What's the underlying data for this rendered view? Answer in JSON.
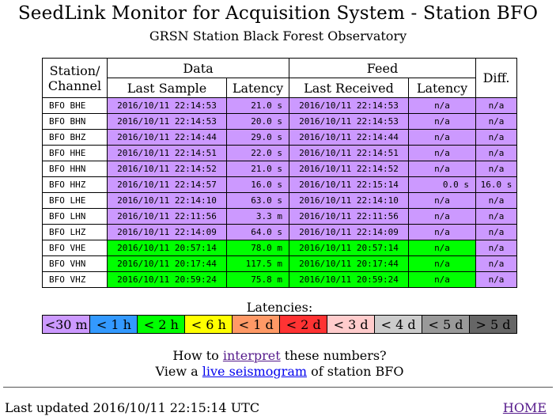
{
  "title": "SeedLink Monitor for Acquisition System - Station BFO",
  "subtitle": "GRSN Station Black Forest Observatory",
  "headers": {
    "station": "Station/",
    "channel": "Channel",
    "data": "Data",
    "feed": "Feed",
    "diff": "Diff.",
    "last_sample": "Last Sample",
    "latency": "Latency",
    "last_received": "Last Received",
    "feed_latency": "Latency"
  },
  "colors": {
    "purple": "#cc99ff",
    "green": "#00ff00"
  },
  "rows": [
    {
      "station": "BFO BHE",
      "last_sample": "2016/10/11 22:14:53",
      "latency": "21.0 s",
      "last_received": "2016/10/11 22:14:53",
      "feed_latency": "n/a",
      "diff": "n/a",
      "color": "#cc99ff"
    },
    {
      "station": "BFO BHN",
      "last_sample": "2016/10/11 22:14:53",
      "latency": "20.0 s",
      "last_received": "2016/10/11 22:14:53",
      "feed_latency": "n/a",
      "diff": "n/a",
      "color": "#cc99ff"
    },
    {
      "station": "BFO BHZ",
      "last_sample": "2016/10/11 22:14:44",
      "latency": "29.0 s",
      "last_received": "2016/10/11 22:14:44",
      "feed_latency": "n/a",
      "diff": "n/a",
      "color": "#cc99ff"
    },
    {
      "station": "BFO HHE",
      "last_sample": "2016/10/11 22:14:51",
      "latency": "22.0 s",
      "last_received": "2016/10/11 22:14:51",
      "feed_latency": "n/a",
      "diff": "n/a",
      "color": "#cc99ff"
    },
    {
      "station": "BFO HHN",
      "last_sample": "2016/10/11 22:14:52",
      "latency": "21.0 s",
      "last_received": "2016/10/11 22:14:52",
      "feed_latency": "n/a",
      "diff": "n/a",
      "color": "#cc99ff"
    },
    {
      "station": "BFO HHZ",
      "last_sample": "2016/10/11 22:14:57",
      "latency": "16.0 s",
      "last_received": "2016/10/11 22:15:14",
      "feed_latency": "0.0 s",
      "diff": "16.0 s",
      "color": "#cc99ff"
    },
    {
      "station": "BFO LHE",
      "last_sample": "2016/10/11 22:14:10",
      "latency": "63.0 s",
      "last_received": "2016/10/11 22:14:10",
      "feed_latency": "n/a",
      "diff": "n/a",
      "color": "#cc99ff"
    },
    {
      "station": "BFO LHN",
      "last_sample": "2016/10/11 22:11:56",
      "latency": "3.3 m",
      "last_received": "2016/10/11 22:11:56",
      "feed_latency": "n/a",
      "diff": "n/a",
      "color": "#cc99ff"
    },
    {
      "station": "BFO LHZ",
      "last_sample": "2016/10/11 22:14:09",
      "latency": "64.0 s",
      "last_received": "2016/10/11 22:14:09",
      "feed_latency": "n/a",
      "diff": "n/a",
      "color": "#cc99ff"
    },
    {
      "station": "BFO VHE",
      "last_sample": "2016/10/11 20:57:14",
      "latency": "78.0 m",
      "last_received": "2016/10/11 20:57:14",
      "feed_latency": "n/a",
      "diff": "n/a",
      "color": "#00ff00"
    },
    {
      "station": "BFO VHN",
      "last_sample": "2016/10/11 20:17:44",
      "latency": "117.5 m",
      "last_received": "2016/10/11 20:17:44",
      "feed_latency": "n/a",
      "diff": "n/a",
      "color": "#00ff00"
    },
    {
      "station": "BFO VHZ",
      "last_sample": "2016/10/11 20:59:24",
      "latency": "75.8 m",
      "last_received": "2016/10/11 20:59:24",
      "feed_latency": "n/a",
      "diff": "n/a",
      "color": "#00ff00"
    }
  ],
  "legend": {
    "title": "Latencies:",
    "items": [
      {
        "label": "<30 m",
        "color": "#cc99ff"
      },
      {
        "label": "< 1 h",
        "color": "#3399ff"
      },
      {
        "label": "< 2 h",
        "color": "#00ff00"
      },
      {
        "label": "< 6 h",
        "color": "#ffff00"
      },
      {
        "label": "< 1 d",
        "color": "#ff9966"
      },
      {
        "label": "< 2 d",
        "color": "#ff3333"
      },
      {
        "label": "< 3 d",
        "color": "#ffcccc"
      },
      {
        "label": "< 4 d",
        "color": "#cccccc"
      },
      {
        "label": "< 5 d",
        "color": "#999999"
      },
      {
        "label": "> 5 d",
        "color": "#666666"
      }
    ]
  },
  "links": {
    "line1_pre": "How to ",
    "interpret": "interpret",
    "line1_post": " these numbers?",
    "line2_pre": "View a ",
    "seismogram": "live seismogram",
    "line2_post": " of station BFO"
  },
  "footer": {
    "updated": "Last updated 2016/10/11 22:15:14 UTC",
    "home": "HOME"
  }
}
